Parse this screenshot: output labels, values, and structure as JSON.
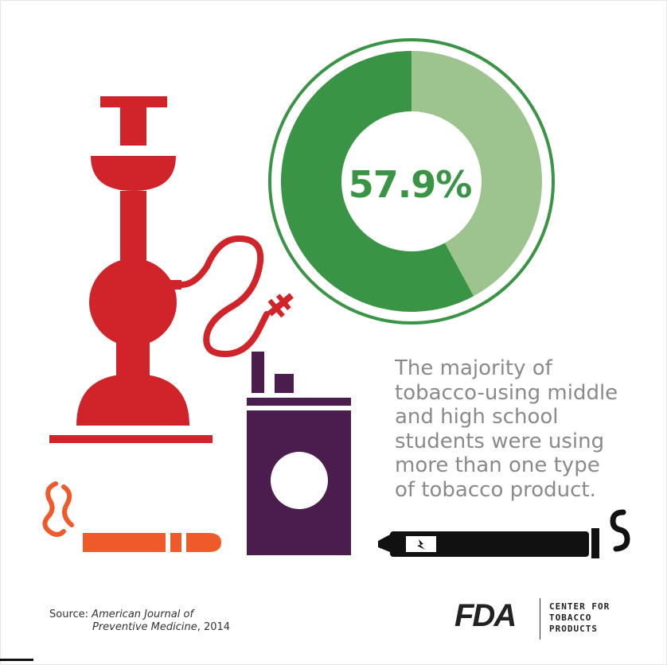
{
  "stat": {
    "percent_label": "57.9%",
    "percent_value": 57.9,
    "ring_color_majority": "#3a9446",
    "ring_color_minority": "#9dc48f"
  },
  "message": {
    "lines": [
      "The majority of",
      "tobacco-using middle",
      "and high school",
      "students were using",
      "more than one type",
      "of tobacco product."
    ]
  },
  "source": {
    "prefix": "Source: ",
    "journal_line1": "American Journal of",
    "journal_line2": "Preventive Medicine",
    "year": ", 2014"
  },
  "branding": {
    "fda_logo": "FDA",
    "center_line1": "CENTER FOR",
    "center_line2": "TOBACCO",
    "center_line3": "PRODUCTS"
  },
  "icons": {
    "hookah": "hookah-icon",
    "cigar": "cigar-icon",
    "smokeless_tin": "smokeless-tobacco-icon",
    "ecig": "e-cigarette-icon"
  },
  "colors": {
    "hookah": "#d1242a",
    "cigar": "#ee5a2a",
    "tin": "#4b1d4f",
    "ecig": "#111111",
    "text_gray": "#8a8a8a"
  }
}
